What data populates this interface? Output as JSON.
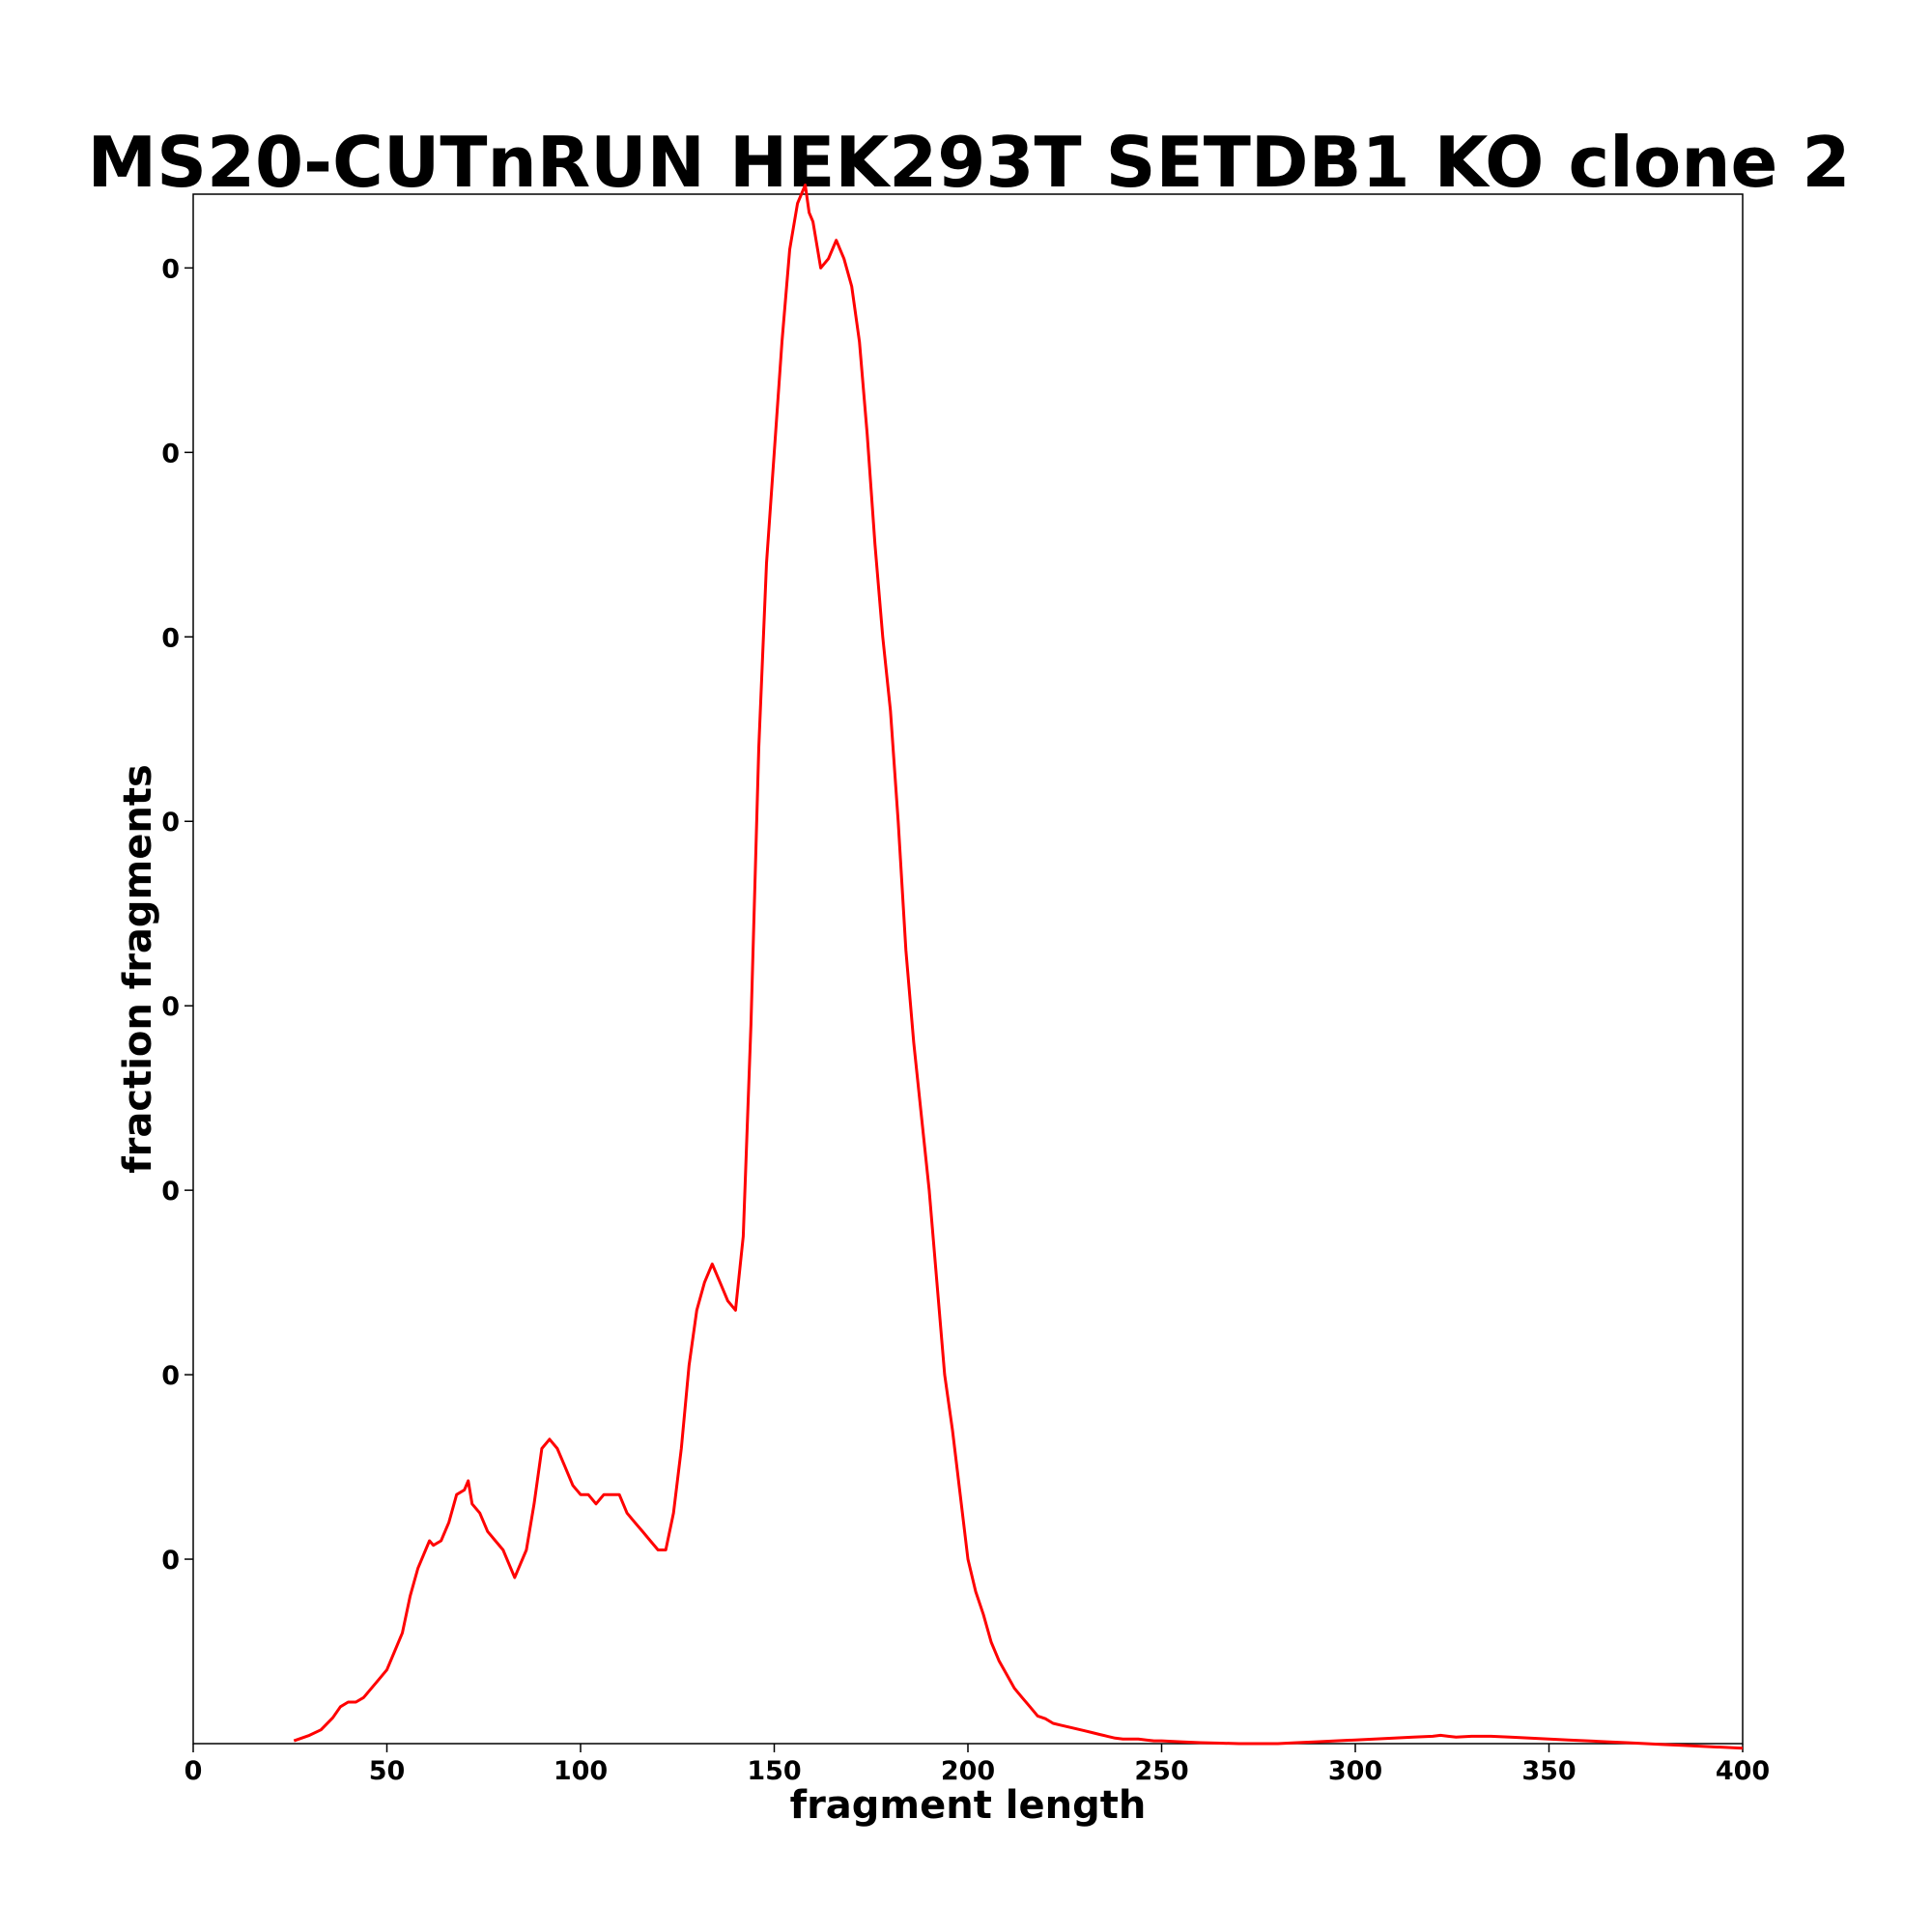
{
  "chart_data": {
    "type": "line",
    "title": "MS20-CUTnRUN HEK293T SETDB1 KO clone 2",
    "xlabel": "fragment length",
    "ylabel": "fraction fragments",
    "xlim": [
      0,
      400
    ],
    "ylim": [
      0,
      0.0168
    ],
    "grid": false,
    "legend": "none",
    "x_ticks": [
      0,
      50,
      100,
      150,
      200,
      250,
      300,
      350,
      400
    ],
    "x_tick_labels": [
      "0",
      "50",
      "100",
      "150",
      "200",
      "250",
      "300",
      "350",
      "400"
    ],
    "y_ticks": [
      0.002,
      0.004,
      0.006,
      0.008,
      0.01,
      0.012,
      0.014,
      0.016
    ],
    "y_tick_labels": [
      "0",
      "0",
      "0",
      "0",
      "0",
      "0",
      "0",
      "0"
    ],
    "series": [
      {
        "color": "#ff0000",
        "x": [
          26,
          30,
          33,
          36,
          38,
          40,
          42,
          44,
          46,
          48,
          50,
          52,
          54,
          56,
          58,
          60,
          61,
          62,
          64,
          66,
          68,
          70,
          71,
          72,
          74,
          76,
          78,
          80,
          82,
          83,
          84,
          86,
          88,
          90,
          92,
          94,
          96,
          98,
          100,
          102,
          104,
          106,
          108,
          110,
          112,
          114,
          116,
          118,
          120,
          122,
          124,
          126,
          128,
          130,
          132,
          134,
          136,
          138,
          140,
          142,
          144,
          146,
          148,
          150,
          152,
          154,
          156,
          158,
          159,
          160,
          162,
          164,
          166,
          167,
          168,
          170,
          172,
          174,
          176,
          178,
          180,
          182,
          184,
          186,
          188,
          190,
          192,
          194,
          196,
          198,
          200,
          202,
          204,
          206,
          208,
          210,
          212,
          214,
          216,
          218,
          220,
          222,
          224,
          226,
          228,
          230,
          232,
          234,
          236,
          238,
          240,
          242,
          244,
          246,
          248,
          250,
          255,
          260,
          265,
          270,
          275,
          280,
          285,
          290,
          295,
          300,
          305,
          310,
          315,
          320,
          322,
          324,
          326,
          330,
          335,
          340,
          345,
          350,
          355,
          360,
          365,
          370,
          375,
          380,
          385,
          390,
          395,
          400
        ],
        "values": [
          3e-05,
          9e-05,
          0.00015,
          0.00028,
          0.0004,
          0.00045,
          0.00045,
          0.0005,
          0.0006,
          0.0007,
          0.0008,
          0.001,
          0.0012,
          0.0016,
          0.0019,
          0.0021,
          0.0022,
          0.00215,
          0.0022,
          0.0024,
          0.0027,
          0.00275,
          0.00285,
          0.0026,
          0.0025,
          0.0023,
          0.0022,
          0.0021,
          0.0019,
          0.0018,
          0.0019,
          0.0021,
          0.0026,
          0.0032,
          0.0033,
          0.0032,
          0.003,
          0.0028,
          0.0027,
          0.0027,
          0.0026,
          0.0027,
          0.0027,
          0.0027,
          0.0025,
          0.0024,
          0.0023,
          0.0022,
          0.0021,
          0.0021,
          0.0025,
          0.0032,
          0.0041,
          0.0047,
          0.005,
          0.0052,
          0.005,
          0.0048,
          0.0047,
          0.0055,
          0.0078,
          0.0108,
          0.0128,
          0.014,
          0.0152,
          0.0162,
          0.0167,
          0.0169,
          0.0166,
          0.0165,
          0.016,
          0.0161,
          0.0163,
          0.0162,
          0.0161,
          0.0158,
          0.0152,
          0.0142,
          0.013,
          0.012,
          0.0112,
          0.01,
          0.0086,
          0.0076,
          0.0068,
          0.006,
          0.005,
          0.004,
          0.0034,
          0.0027,
          0.002,
          0.00165,
          0.0014,
          0.0011,
          0.0009,
          0.00075,
          0.0006,
          0.0005,
          0.0004,
          0.0003,
          0.00027,
          0.00022,
          0.0002,
          0.00018,
          0.00016,
          0.00014,
          0.00012,
          0.0001,
          8e-05,
          6e-05,
          5e-05,
          5e-05,
          5e-05,
          4e-05,
          3e-05,
          3e-05,
          2e-05,
          1e-05,
          5e-06,
          0,
          0,
          0,
          1e-05,
          2e-05,
          3e-05,
          4e-05,
          5e-05,
          6e-05,
          7e-05,
          8e-05,
          9e-05,
          8e-05,
          7e-05,
          8e-05,
          8e-05,
          7e-05,
          6e-05,
          5e-05,
          4e-05,
          3e-05,
          2e-05,
          1e-05,
          0,
          -1e-05,
          -2e-05,
          -3e-05,
          -4e-05,
          -5e-05
        ]
      }
    ]
  }
}
